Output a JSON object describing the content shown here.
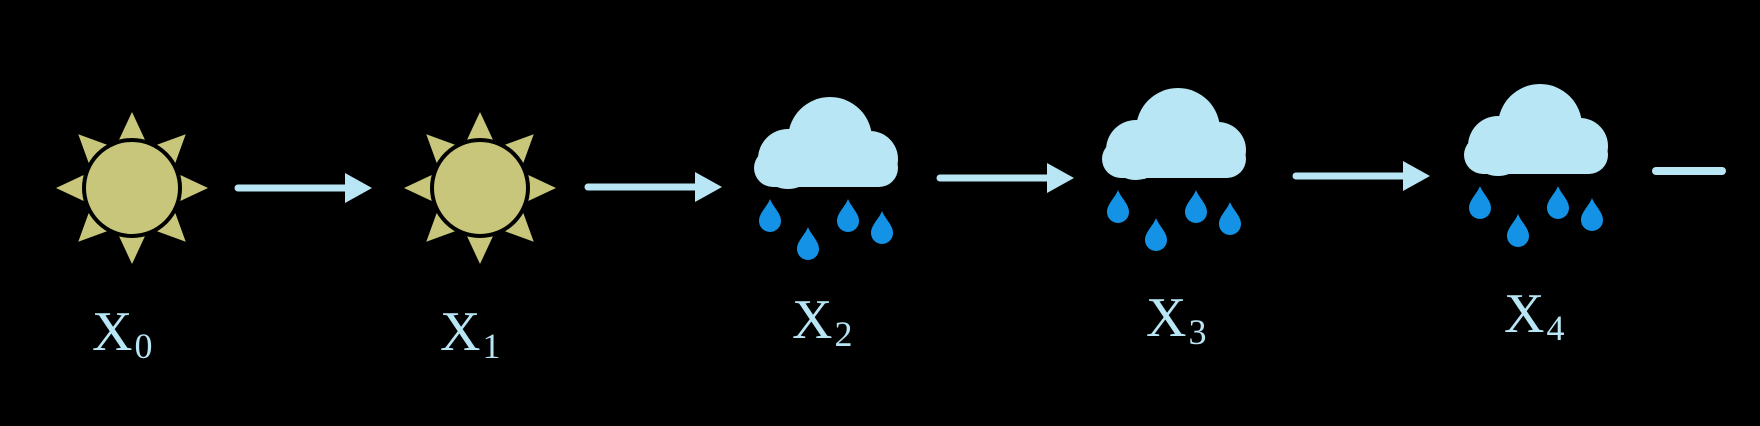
{
  "diagram": {
    "type": "markov-chain",
    "colors": {
      "background": "#000000",
      "sun_fill": "#c7c67a",
      "sun_stroke": "#000000",
      "cloud": "#b8e6f4",
      "raindrop": "#1493e6",
      "arrow": "#b8e6f4",
      "label": "#b8e6f4"
    },
    "states": [
      {
        "weather": "sunny",
        "icon": "sun-icon",
        "label": "X",
        "subscript": "0"
      },
      {
        "weather": "sunny",
        "icon": "sun-icon",
        "label": "X",
        "subscript": "1"
      },
      {
        "weather": "rainy",
        "icon": "rain-cloud-icon",
        "label": "X",
        "subscript": "2"
      },
      {
        "weather": "rainy",
        "icon": "rain-cloud-icon",
        "label": "X",
        "subscript": "3"
      },
      {
        "weather": "rainy",
        "icon": "rain-cloud-icon",
        "label": "X",
        "subscript": "4"
      }
    ],
    "transitions": [
      {
        "from": 0,
        "to": 1
      },
      {
        "from": 1,
        "to": 2
      },
      {
        "from": 2,
        "to": 3
      },
      {
        "from": 3,
        "to": 4
      }
    ],
    "continuation": "dash"
  }
}
